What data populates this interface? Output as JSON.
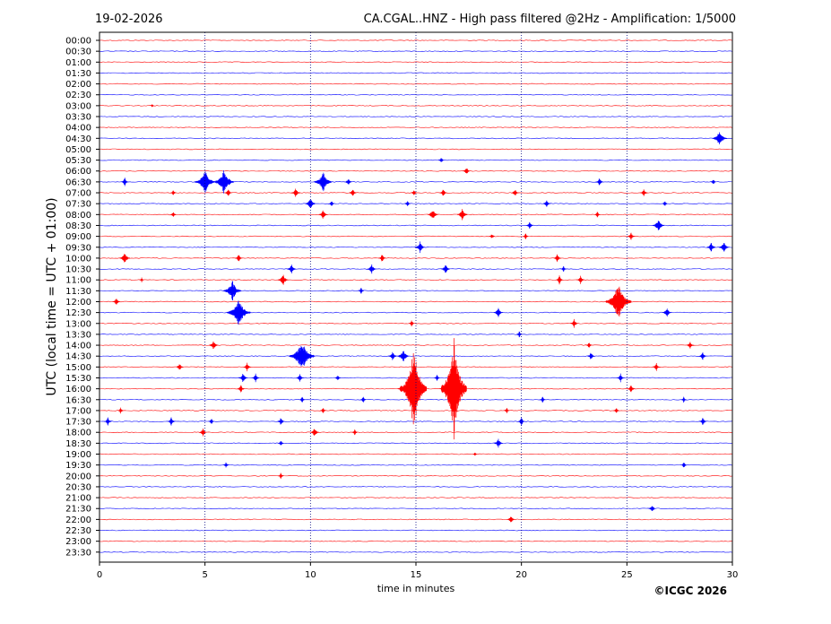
{
  "header": {
    "date": "19-02-2026",
    "title": "CA.CGAL..HNZ - High pass filtered @2Hz - Amplification: 1/5000"
  },
  "footer": {
    "copyright": "©ICGC 2026"
  },
  "colors": {
    "red": "#ff0000",
    "blue": "#0000ff"
  },
  "chart_data": {
    "type": "line",
    "title": "CA.CGAL..HNZ - High pass filtered @2Hz - Amplification: 1/5000",
    "xlabel": "time in minutes",
    "ylabel": "UTC (local time = UTC + 01:00)",
    "xlim": [
      0,
      30
    ],
    "xticks": [
      0,
      5,
      10,
      15,
      20,
      25,
      30
    ],
    "grid": "vertical dotted lines at 5-minute intervals",
    "row_labels": [
      "00:00",
      "00:30",
      "01:00",
      "01:30",
      "02:00",
      "02:30",
      "03:00",
      "03:30",
      "04:00",
      "04:30",
      "05:00",
      "05:30",
      "06:00",
      "06:30",
      "07:00",
      "07:30",
      "08:00",
      "08:30",
      "09:00",
      "09:30",
      "10:00",
      "10:30",
      "11:00",
      "11:30",
      "12:00",
      "12:30",
      "13:00",
      "13:30",
      "14:00",
      "14:30",
      "15:00",
      "15:30",
      "16:00",
      "16:30",
      "17:00",
      "17:30",
      "18:00",
      "18:30",
      "19:00",
      "19:30",
      "20:00",
      "20:30",
      "21:00",
      "21:30",
      "22:00",
      "22:30",
      "23:00",
      "23:30"
    ],
    "row_colors": "alternating red / blue per half-hour trace",
    "events": [
      {
        "t": "03:00",
        "min": 2.5,
        "amp": 2
      },
      {
        "t": "04:30",
        "min": 29.4,
        "amp": 10
      },
      {
        "t": "05:30",
        "min": 16.2,
        "amp": 4
      },
      {
        "t": "06:00",
        "min": 17.4,
        "amp": 5
      },
      {
        "t": "06:30",
        "min": 1.2,
        "amp": 5
      },
      {
        "t": "06:30",
        "min": 5.0,
        "amp": 14
      },
      {
        "t": "06:30",
        "min": 5.9,
        "amp": 14
      },
      {
        "t": "06:30",
        "min": 10.6,
        "amp": 12
      },
      {
        "t": "06:30",
        "min": 11.8,
        "amp": 5
      },
      {
        "t": "06:30",
        "min": 23.7,
        "amp": 5
      },
      {
        "t": "06:30",
        "min": 29.1,
        "amp": 4
      },
      {
        "t": "07:00",
        "min": 3.5,
        "amp": 4
      },
      {
        "t": "07:00",
        "min": 6.1,
        "amp": 5
      },
      {
        "t": "07:00",
        "min": 9.3,
        "amp": 6
      },
      {
        "t": "07:00",
        "min": 12.0,
        "amp": 5
      },
      {
        "t": "07:00",
        "min": 14.9,
        "amp": 4
      },
      {
        "t": "07:00",
        "min": 16.3,
        "amp": 5
      },
      {
        "t": "07:00",
        "min": 19.7,
        "amp": 5
      },
      {
        "t": "07:00",
        "min": 25.8,
        "amp": 5
      },
      {
        "t": "07:30",
        "min": 10.0,
        "amp": 7
      },
      {
        "t": "07:30",
        "min": 11.0,
        "amp": 4
      },
      {
        "t": "07:30",
        "min": 14.6,
        "amp": 4
      },
      {
        "t": "07:30",
        "min": 21.2,
        "amp": 5
      },
      {
        "t": "07:30",
        "min": 26.8,
        "amp": 4
      },
      {
        "t": "08:00",
        "min": 3.5,
        "amp": 4
      },
      {
        "t": "08:00",
        "min": 10.6,
        "amp": 6
      },
      {
        "t": "08:00",
        "min": 15.8,
        "amp": 7
      },
      {
        "t": "08:00",
        "min": 17.2,
        "amp": 7
      },
      {
        "t": "08:00",
        "min": 23.6,
        "amp": 4
      },
      {
        "t": "08:30",
        "min": 20.4,
        "amp": 5
      },
      {
        "t": "08:30",
        "min": 26.5,
        "amp": 8
      },
      {
        "t": "09:00",
        "min": 18.6,
        "amp": 4
      },
      {
        "t": "09:00",
        "min": 20.2,
        "amp": 4
      },
      {
        "t": "09:00",
        "min": 25.2,
        "amp": 5
      },
      {
        "t": "09:30",
        "min": 15.2,
        "amp": 7
      },
      {
        "t": "09:30",
        "min": 29.0,
        "amp": 6
      },
      {
        "t": "09:30",
        "min": 29.6,
        "amp": 7
      },
      {
        "t": "10:00",
        "min": 1.2,
        "amp": 7
      },
      {
        "t": "10:00",
        "min": 6.6,
        "amp": 5
      },
      {
        "t": "10:00",
        "min": 13.4,
        "amp": 5
      },
      {
        "t": "10:00",
        "min": 21.7,
        "amp": 5
      },
      {
        "t": "10:30",
        "min": 9.1,
        "amp": 6
      },
      {
        "t": "10:30",
        "min": 12.9,
        "amp": 6
      },
      {
        "t": "10:30",
        "min": 16.4,
        "amp": 6
      },
      {
        "t": "10:30",
        "min": 22.0,
        "amp": 4
      },
      {
        "t": "11:00",
        "min": 2.0,
        "amp": 3
      },
      {
        "t": "11:00",
        "min": 8.7,
        "amp": 7
      },
      {
        "t": "11:00",
        "min": 21.8,
        "amp": 5
      },
      {
        "t": "11:00",
        "min": 22.8,
        "amp": 5
      },
      {
        "t": "11:30",
        "min": 6.3,
        "amp": 12
      },
      {
        "t": "11:30",
        "min": 12.4,
        "amp": 4
      },
      {
        "t": "12:00",
        "min": 0.8,
        "amp": 5
      },
      {
        "t": "12:00",
        "min": 24.6,
        "amp": 22
      },
      {
        "t": "12:30",
        "min": 6.6,
        "amp": 16
      },
      {
        "t": "12:30",
        "min": 18.9,
        "amp": 6
      },
      {
        "t": "12:30",
        "min": 26.9,
        "amp": 6
      },
      {
        "t": "13:00",
        "min": 14.8,
        "amp": 4
      },
      {
        "t": "13:00",
        "min": 22.5,
        "amp": 5
      },
      {
        "t": "13:30",
        "min": 19.9,
        "amp": 4
      },
      {
        "t": "14:00",
        "min": 5.4,
        "amp": 6
      },
      {
        "t": "14:00",
        "min": 23.2,
        "amp": 4
      },
      {
        "t": "14:00",
        "min": 28.0,
        "amp": 5
      },
      {
        "t": "14:30",
        "min": 9.6,
        "amp": 18
      },
      {
        "t": "14:30",
        "min": 13.9,
        "amp": 6
      },
      {
        "t": "14:30",
        "min": 14.4,
        "amp": 8
      },
      {
        "t": "14:30",
        "min": 23.3,
        "amp": 5
      },
      {
        "t": "14:30",
        "min": 28.6,
        "amp": 5
      },
      {
        "t": "15:00",
        "min": 3.8,
        "amp": 5
      },
      {
        "t": "15:00",
        "min": 7.0,
        "amp": 5
      },
      {
        "t": "15:00",
        "min": 26.4,
        "amp": 5
      },
      {
        "t": "15:30",
        "min": 6.8,
        "amp": 6
      },
      {
        "t": "15:30",
        "min": 7.4,
        "amp": 5
      },
      {
        "t": "15:30",
        "min": 9.5,
        "amp": 5
      },
      {
        "t": "15:30",
        "min": 11.3,
        "amp": 4
      },
      {
        "t": "15:30",
        "min": 16.0,
        "amp": 4
      },
      {
        "t": "15:30",
        "min": 24.7,
        "amp": 5
      },
      {
        "t": "16:00",
        "min": 6.7,
        "amp": 5
      },
      {
        "t": "16:00",
        "min": 14.3,
        "amp": 5
      },
      {
        "t": "16:00",
        "min": 14.9,
        "amp": 50
      },
      {
        "t": "16:00",
        "min": 16.3,
        "amp": 5
      },
      {
        "t": "16:00",
        "min": 16.8,
        "amp": 60
      },
      {
        "t": "16:00",
        "min": 25.2,
        "amp": 5
      },
      {
        "t": "16:30",
        "min": 9.6,
        "amp": 4
      },
      {
        "t": "16:30",
        "min": 12.5,
        "amp": 4
      },
      {
        "t": "16:30",
        "min": 21.0,
        "amp": 4
      },
      {
        "t": "16:30",
        "min": 27.7,
        "amp": 4
      },
      {
        "t": "17:00",
        "min": 1.0,
        "amp": 4
      },
      {
        "t": "17:00",
        "min": 10.6,
        "amp": 4
      },
      {
        "t": "17:00",
        "min": 19.3,
        "amp": 4
      },
      {
        "t": "17:00",
        "min": 24.5,
        "amp": 4
      },
      {
        "t": "17:30",
        "min": 0.4,
        "amp": 5
      },
      {
        "t": "17:30",
        "min": 3.4,
        "amp": 5
      },
      {
        "t": "17:30",
        "min": 5.3,
        "amp": 4
      },
      {
        "t": "17:30",
        "min": 8.6,
        "amp": 5
      },
      {
        "t": "17:30",
        "min": 20.0,
        "amp": 5
      },
      {
        "t": "17:30",
        "min": 28.6,
        "amp": 5
      },
      {
        "t": "18:00",
        "min": 4.9,
        "amp": 5
      },
      {
        "t": "18:00",
        "min": 10.2,
        "amp": 6
      },
      {
        "t": "18:00",
        "min": 12.1,
        "amp": 4
      },
      {
        "t": "18:30",
        "min": 8.6,
        "amp": 4
      },
      {
        "t": "18:30",
        "min": 18.9,
        "amp": 6
      },
      {
        "t": "19:00",
        "min": 17.8,
        "amp": 3
      },
      {
        "t": "19:30",
        "min": 6.0,
        "amp": 4
      },
      {
        "t": "19:30",
        "min": 27.7,
        "amp": 4
      },
      {
        "t": "20:00",
        "min": 8.6,
        "amp": 4
      },
      {
        "t": "21:30",
        "min": 26.2,
        "amp": 5
      },
      {
        "t": "22:00",
        "min": 19.5,
        "amp": 5
      }
    ]
  }
}
